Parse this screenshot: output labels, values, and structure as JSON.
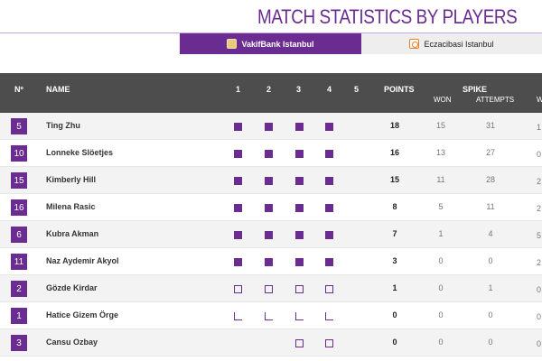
{
  "page": {
    "title": "MATCH STATISTICS BY PLAYERS"
  },
  "tabs": [
    {
      "label": "VakifBank Istanbul",
      "active": true,
      "color": "#6b2c91"
    },
    {
      "label": "Eczacibasi Istanbul",
      "active": false,
      "color": "#eeeeee"
    }
  ],
  "header": {
    "number": "Nº",
    "name": "NAME",
    "sets": [
      "1",
      "2",
      "3",
      "4",
      "5"
    ],
    "points": "POINTS",
    "spike": "SPIKE",
    "won": "WON",
    "attempts": "ATTEMPTS",
    "next": "W"
  },
  "legend_states": {
    "full": "played-full",
    "empty": "played-substitute",
    "corner": "entered-set"
  },
  "players": [
    {
      "number": "5",
      "name": "Ting Zhu",
      "sets": [
        "full",
        "full",
        "full",
        "full",
        ""
      ],
      "points": "18",
      "won": "15",
      "attempts": "31",
      "edge": "1"
    },
    {
      "number": "10",
      "name": "Lonneke Slöetjes",
      "sets": [
        "full",
        "full",
        "full",
        "full",
        ""
      ],
      "points": "16",
      "won": "13",
      "attempts": "27",
      "edge": "0"
    },
    {
      "number": "15",
      "name": "Kimberly Hill",
      "sets": [
        "full",
        "full",
        "full",
        "full",
        ""
      ],
      "points": "15",
      "won": "11",
      "attempts": "28",
      "edge": "2"
    },
    {
      "number": "16",
      "name": "Milena Rasic",
      "sets": [
        "full",
        "full",
        "full",
        "full",
        ""
      ],
      "points": "8",
      "won": "5",
      "attempts": "11",
      "edge": "2"
    },
    {
      "number": "6",
      "name": "Kubra Akman",
      "sets": [
        "full",
        "full",
        "full",
        "full",
        ""
      ],
      "points": "7",
      "won": "1",
      "attempts": "4",
      "edge": "5"
    },
    {
      "number": "11",
      "name": "Naz Aydemir Akyol",
      "sets": [
        "full",
        "full",
        "full",
        "full",
        ""
      ],
      "points": "3",
      "won": "0",
      "attempts": "0",
      "edge": "2"
    },
    {
      "number": "2",
      "name": "Gözde Kirdar",
      "sets": [
        "empty",
        "empty",
        "empty",
        "empty",
        ""
      ],
      "points": "1",
      "won": "0",
      "attempts": "1",
      "edge": "0"
    },
    {
      "number": "1",
      "name": "Hatice Gizem Örge",
      "sets": [
        "corner",
        "corner",
        "corner",
        "corner",
        ""
      ],
      "points": "0",
      "won": "0",
      "attempts": "0",
      "edge": "0"
    },
    {
      "number": "3",
      "name": "Cansu Ozbay",
      "sets": [
        "",
        "",
        "empty",
        "empty",
        ""
      ],
      "points": "0",
      "won": "0",
      "attempts": "0",
      "edge": "0"
    }
  ]
}
